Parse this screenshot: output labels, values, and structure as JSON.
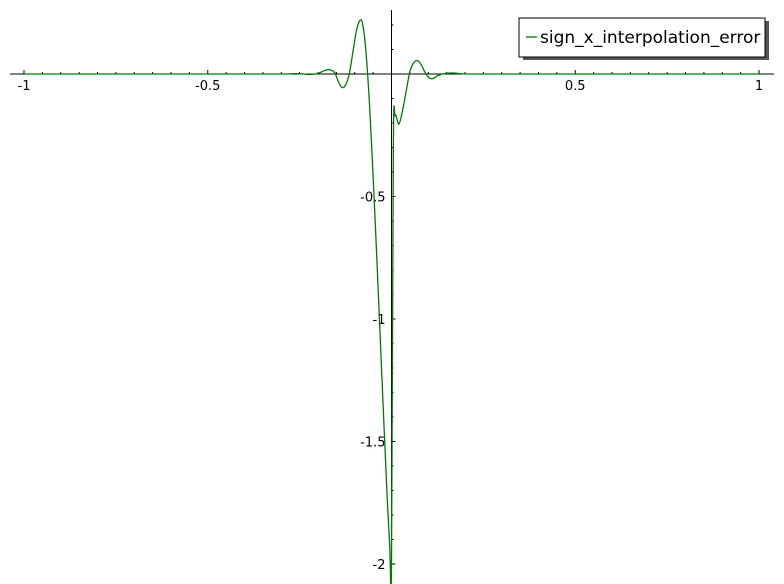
{
  "chart_data": {
    "type": "line",
    "title": "",
    "xlabel": "",
    "ylabel": "",
    "xlim": [
      -1,
      1
    ],
    "ylim": [
      -2,
      0.25
    ],
    "grid": false,
    "legend_position": "top-right",
    "x_ticks": [
      {
        "value": -1,
        "label": "-1"
      },
      {
        "value": -0.5,
        "label": "-0.5"
      },
      {
        "value": 0.5,
        "label": "0.5"
      },
      {
        "value": 1,
        "label": "1"
      }
    ],
    "y_ticks": [
      {
        "value": -0.5,
        "label": "-0.5"
      },
      {
        "value": -1,
        "label": "-1"
      },
      {
        "value": -1.5,
        "label": "-1.5"
      },
      {
        "value": -2,
        "label": "-2"
      }
    ],
    "series": [
      {
        "name": "sign_x_interpolation_error",
        "color": "#007a00",
        "points": [
          [
            -1.0,
            0.0
          ],
          [
            -0.5,
            0.0
          ],
          [
            -0.3,
            0.0
          ],
          [
            -0.26,
            0.002
          ],
          [
            -0.24,
            0.0
          ],
          [
            -0.22,
            -0.002
          ],
          [
            -0.2,
            0.002
          ],
          [
            -0.185,
            0.012
          ],
          [
            -0.17,
            0.018
          ],
          [
            -0.155,
            0.006
          ],
          [
            -0.145,
            -0.03
          ],
          [
            -0.135,
            -0.055
          ],
          [
            -0.125,
            -0.045
          ],
          [
            -0.115,
            0.0
          ],
          [
            -0.105,
            0.09
          ],
          [
            -0.095,
            0.18
          ],
          [
            -0.085,
            0.22
          ],
          [
            -0.078,
            0.2
          ],
          [
            -0.07,
            0.1
          ],
          [
            -0.06,
            -0.12
          ],
          [
            -0.05,
            -0.42
          ],
          [
            -0.04,
            -0.75
          ],
          [
            -0.03,
            -1.1
          ],
          [
            -0.02,
            -1.45
          ],
          [
            -0.012,
            -1.72
          ],
          [
            -0.005,
            -1.92
          ],
          [
            0.0,
            -2.0
          ],
          [
            0.005,
            -0.3
          ],
          [
            0.01,
            -0.17
          ],
          [
            0.02,
            -0.205
          ],
          [
            0.03,
            -0.15
          ],
          [
            0.04,
            -0.07
          ],
          [
            0.05,
            0.01
          ],
          [
            0.06,
            0.045
          ],
          [
            0.07,
            0.055
          ],
          [
            0.08,
            0.04
          ],
          [
            0.09,
            0.01
          ],
          [
            0.1,
            -0.012
          ],
          [
            0.11,
            -0.02
          ],
          [
            0.12,
            -0.012
          ],
          [
            0.13,
            -0.004
          ],
          [
            0.15,
            0.003
          ],
          [
            0.17,
            0.004
          ],
          [
            0.19,
            0.001
          ],
          [
            0.22,
            0.0
          ],
          [
            0.3,
            0.0
          ],
          [
            0.5,
            0.0
          ],
          [
            1.0,
            0.0
          ]
        ]
      }
    ]
  }
}
